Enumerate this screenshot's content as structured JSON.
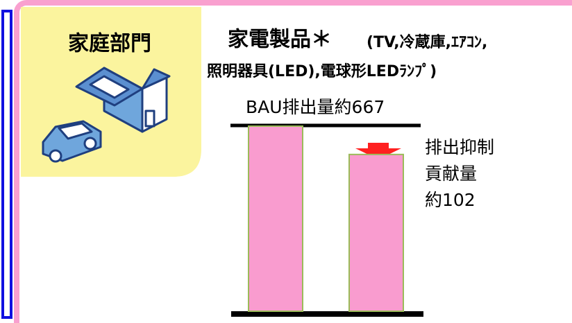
{
  "panel_label": "家庭部門",
  "title": {
    "main": "家電製品＊",
    "sub1": "(TV,冷蔵庫,ｴｱｺﾝ,",
    "line2": "照明器具(LED),電球形LEDﾗﾝﾌﾟ)"
  },
  "chart_data": {
    "type": "bar",
    "categories": [
      null,
      null
    ],
    "values": [
      667,
      565
    ],
    "color": "#f99ccf",
    "edge_color": "#9bbb59",
    "annotations": {
      "bau": "BAU排出量約667",
      "reduction": [
        "排出抑制",
        "貢献量",
        "約102"
      ]
    }
  }
}
